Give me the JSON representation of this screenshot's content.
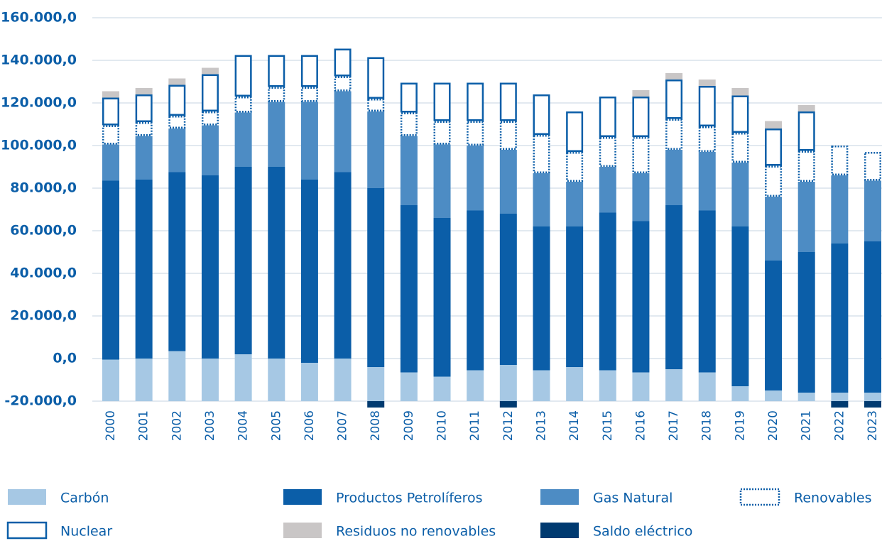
{
  "chart_data": {
    "type": "stacked-bar",
    "categories": [
      "2000",
      "2001",
      "2002",
      "2003",
      "2004",
      "2005",
      "2006",
      "2007",
      "2008",
      "2009",
      "2010",
      "2011",
      "2012",
      "2013",
      "2014",
      "2015",
      "2016",
      "2017",
      "2018",
      "2019",
      "2020",
      "2021",
      "2022",
      "2023"
    ],
    "series": [
      {
        "name": "Carbón",
        "color": "#a6c8e4",
        "style": "solid",
        "values": [
          19500,
          20000,
          23500,
          20000,
          22000,
          20000,
          18000,
          20000,
          16000,
          13500,
          11500,
          14500,
          17000,
          14500,
          16000,
          14500,
          13500,
          15000,
          13500,
          7000,
          5000,
          4000,
          4000,
          4000
        ]
      },
      {
        "name": "Productos Petrolíferos",
        "color": "#0b5ea8",
        "style": "solid",
        "values": [
          84000,
          84000,
          84000,
          86000,
          88000,
          90000,
          86000,
          87500,
          84000,
          78500,
          74500,
          75000,
          71000,
          67500,
          66000,
          74000,
          71000,
          77000,
          76000,
          75000,
          61000,
          66000,
          70000,
          71000
        ]
      },
      {
        "name": "Gas Natural",
        "color": "#4d8cc4",
        "style": "solid",
        "values": [
          17000,
          20500,
          20500,
          23500,
          25500,
          30500,
          36500,
          38000,
          36000,
          32500,
          34500,
          30500,
          30000,
          25000,
          21000,
          21500,
          22500,
          26000,
          27500,
          30000,
          30000,
          33000,
          32000,
          28500
        ]
      },
      {
        "name": "Renovables",
        "color": "#0b5ea8",
        "style": "dotted",
        "values": [
          9000,
          6500,
          6000,
          6500,
          7500,
          7000,
          7000,
          7000,
          6000,
          11000,
          11000,
          11500,
          13500,
          18000,
          14000,
          14000,
          17000,
          14500,
          12000,
          14000,
          14500,
          14500,
          14000,
          13500
        ]
      },
      {
        "name": "Nuclear",
        "color": "#0b5ea8",
        "style": "outline",
        "values": [
          13000,
          13000,
          14500,
          17500,
          19500,
          15000,
          15000,
          13000,
          19500,
          14000,
          18000,
          18000,
          18000,
          19000,
          19000,
          19000,
          19000,
          18500,
          19000,
          17500,
          17500,
          18500,
          0,
          0
        ]
      },
      {
        "name": "Residuos no renovables",
        "color": "#c9c6c6",
        "style": "solid",
        "values": [
          3000,
          3000,
          3000,
          3000,
          0,
          0,
          0,
          0,
          0,
          0,
          0,
          0,
          0,
          0,
          0,
          0,
          3000,
          3000,
          3000,
          3500,
          3500,
          3000,
          0,
          0
        ]
      },
      {
        "name": "Saldo eléctrico",
        "color": "#003a70",
        "style": "solid",
        "values": [
          0,
          0,
          0,
          0,
          0,
          0,
          0,
          0,
          -3000,
          0,
          0,
          0,
          -3000,
          0,
          0,
          0,
          0,
          0,
          0,
          0,
          0,
          0,
          -3000,
          -3000
        ]
      }
    ],
    "ylim": [
      -20000,
      160000
    ],
    "yticks": [
      {
        "value": -20000,
        "label": "-20.000,0"
      },
      {
        "value": 0,
        "label": "0,0"
      },
      {
        "value": 20000,
        "label": "20.000,0"
      },
      {
        "value": 40000,
        "label": "40.000,0"
      },
      {
        "value": 60000,
        "label": "60.000,0"
      },
      {
        "value": 80000,
        "label": "80.000,0"
      },
      {
        "value": 100000,
        "label": "100.000,0"
      },
      {
        "value": 120000,
        "label": "120.000,0"
      },
      {
        "value": 140000,
        "label": "140.000,0"
      },
      {
        "value": 160000,
        "label": "160.000,0"
      }
    ],
    "grid": true
  }
}
